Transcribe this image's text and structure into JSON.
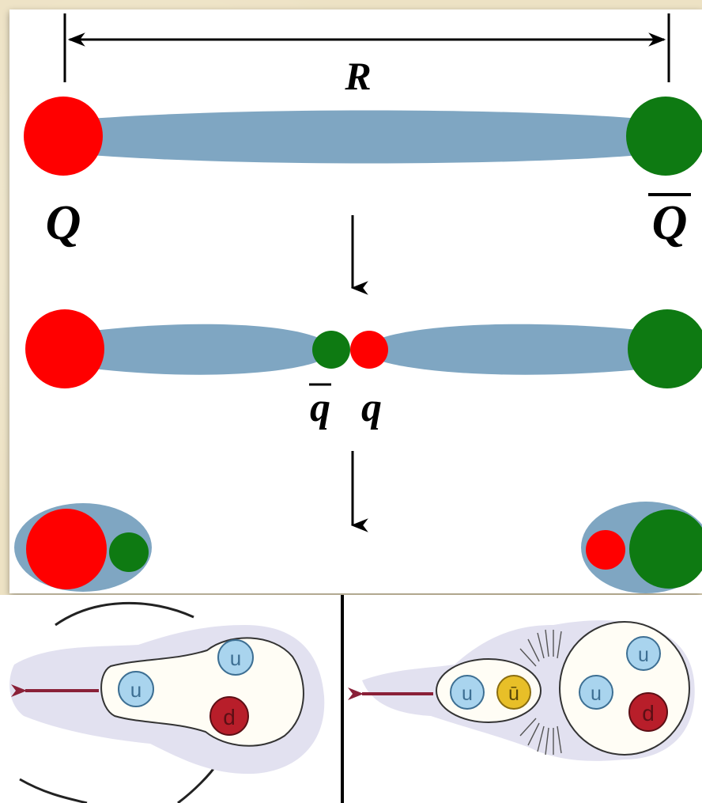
{
  "string_diagram": {
    "separation_label": "R",
    "quark_label": "Q",
    "antiquark_label": "Q",
    "light_antiquark_label": "q",
    "light_quark_label": "q"
  },
  "hadron_diagrams": {
    "left": {
      "quark_labels": [
        "u",
        "u",
        "d"
      ]
    },
    "right": {
      "meson_labels": [
        "u",
        "ū"
      ],
      "baryon_labels": [
        "u",
        "u",
        "d"
      ]
    }
  },
  "colors": {
    "red_charge": "#ff0000",
    "green_charge": "#0e7a12",
    "flux_tube": "#7fa6c2",
    "hadron_cloud": "#e2e1f0",
    "up_quark": "#a9d4ee",
    "down_quark": "#b81e2a",
    "anti_up_quark": "#e8bf28",
    "pull_arrow": "#8a2038"
  }
}
